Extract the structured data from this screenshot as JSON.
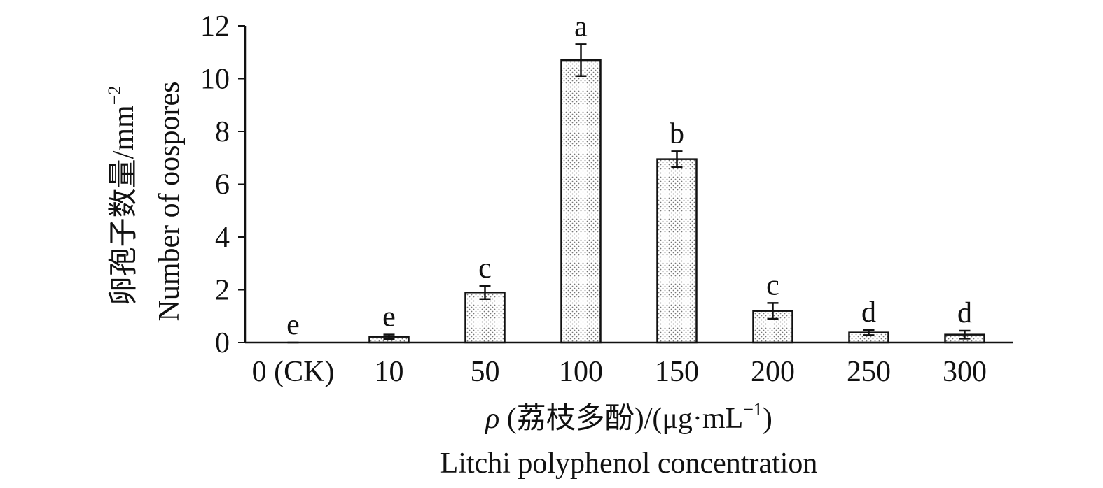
{
  "chart_data": {
    "type": "bar",
    "categories": [
      "0 (CK)",
      "10",
      "50",
      "100",
      "150",
      "200",
      "250",
      "300"
    ],
    "values": [
      0,
      0.22,
      1.9,
      10.7,
      6.95,
      1.2,
      0.38,
      0.3
    ],
    "errors": [
      0,
      0.08,
      0.25,
      0.6,
      0.3,
      0.3,
      0.1,
      0.15
    ],
    "significance": [
      "e",
      "e",
      "c",
      "a",
      "b",
      "c",
      "d",
      "d"
    ],
    "color": "#ffffff",
    "ylim": [
      0,
      12
    ],
    "yticks": [
      0,
      2,
      4,
      6,
      8,
      10,
      12
    ],
    "y_label": {
      "cn": "卵孢子数量/mm",
      "cn_sup": "−2",
      "en": "Number of oospores"
    },
    "x_label": {
      "symbol": "ρ",
      "cn": " (荔枝多酚)/(μg·mL",
      "sup": "−1",
      "close": ")",
      "en": "Litchi polyphenol concentration"
    }
  }
}
